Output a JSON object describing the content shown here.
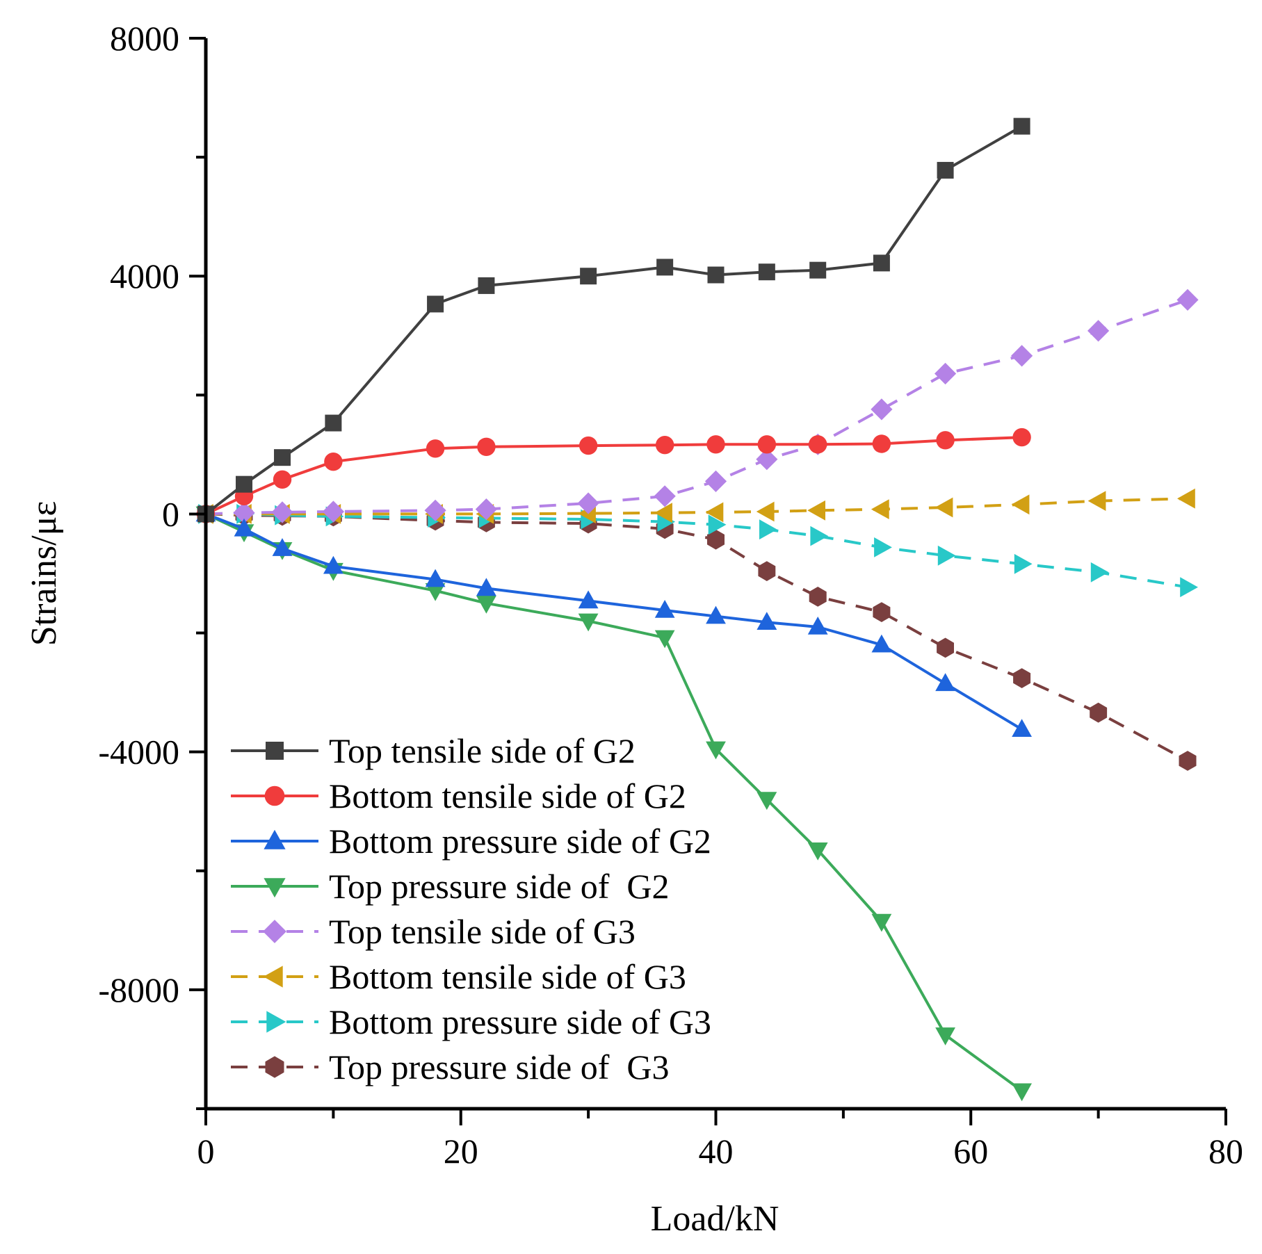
{
  "chart_data": {
    "type": "line",
    "title": "",
    "xlabel": "Load/kN",
    "ylabel": "Strains/με",
    "xlim": [
      0,
      80
    ],
    "ylim": [
      -10000,
      8000
    ],
    "xticks": [
      0,
      20,
      40,
      60,
      80
    ],
    "xtick_labels": [
      "0",
      "20",
      "40",
      "60",
      "80"
    ],
    "yticks": [
      8000,
      4000,
      0,
      -4000,
      -8000
    ],
    "ytick_labels": [
      "8000",
      "4000",
      "0",
      "-4000",
      "-8000"
    ],
    "grid": false,
    "legend_position": "bottom-left",
    "series": [
      {
        "name": "Top tensile side of G2",
        "color": "#404040",
        "marker": "square",
        "dashed": false,
        "x": [
          0,
          3,
          6,
          10,
          18,
          22,
          30,
          36,
          40,
          44,
          48,
          53,
          58,
          64
        ],
        "y": [
          0,
          500,
          950,
          1530,
          3530,
          3840,
          4000,
          4150,
          4020,
          4070,
          4100,
          4220,
          5780,
          6520
        ]
      },
      {
        "name": "Bottom tensile side of G2",
        "color": "#f03c3c",
        "marker": "circle",
        "dashed": false,
        "x": [
          0,
          3,
          6,
          10,
          18,
          22,
          30,
          36,
          40,
          44,
          48,
          53,
          58,
          64
        ],
        "y": [
          0,
          300,
          580,
          880,
          1100,
          1130,
          1150,
          1160,
          1170,
          1170,
          1170,
          1180,
          1240,
          1290
        ]
      },
      {
        "name": "Bottom pressure side of G2",
        "color": "#1e64dc",
        "marker": "triangle-up",
        "dashed": false,
        "x": [
          0,
          3,
          6,
          10,
          18,
          22,
          30,
          36,
          40,
          44,
          48,
          53,
          58,
          64
        ],
        "y": [
          0,
          -250,
          -580,
          -880,
          -1100,
          -1250,
          -1460,
          -1620,
          -1720,
          -1820,
          -1900,
          -2200,
          -2850,
          -3620
        ]
      },
      {
        "name": "Top pressure side of  G2",
        "color": "#3caa5a",
        "marker": "triangle-down",
        "dashed": false,
        "x": [
          0,
          3,
          6,
          10,
          18,
          22,
          30,
          36,
          40,
          44,
          48,
          53,
          58,
          64
        ],
        "y": [
          0,
          -300,
          -600,
          -950,
          -1290,
          -1500,
          -1800,
          -2080,
          -3950,
          -4800,
          -5650,
          -6850,
          -8760,
          -9700
        ]
      },
      {
        "name": "Top tensile side of G3",
        "color": "#b482e6",
        "marker": "diamond",
        "dashed": true,
        "x": [
          0,
          3,
          6,
          10,
          18,
          22,
          30,
          36,
          40,
          44,
          48,
          53,
          58,
          64,
          70,
          77
        ],
        "y": [
          0,
          20,
          30,
          40,
          60,
          80,
          180,
          300,
          550,
          920,
          1170,
          1760,
          2360,
          2660,
          3080,
          3600
        ]
      },
      {
        "name": "Bottom tensile side of G3",
        "color": "#d2a014",
        "marker": "triangle-left",
        "dashed": true,
        "x": [
          0,
          3,
          6,
          10,
          18,
          22,
          30,
          36,
          40,
          44,
          48,
          53,
          58,
          64,
          70,
          77
        ],
        "y": [
          0,
          0,
          0,
          0,
          0,
          0,
          10,
          20,
          30,
          40,
          60,
          80,
          110,
          160,
          220,
          260
        ]
      },
      {
        "name": "Bottom pressure side of G3",
        "color": "#28c8c8",
        "marker": "triangle-right",
        "dashed": true,
        "x": [
          0,
          3,
          6,
          10,
          18,
          22,
          30,
          36,
          40,
          44,
          48,
          53,
          58,
          64,
          70,
          77
        ],
        "y": [
          0,
          0,
          -20,
          -40,
          -60,
          -70,
          -90,
          -130,
          -180,
          -260,
          -370,
          -560,
          -700,
          -840,
          -980,
          -1230
        ]
      },
      {
        "name": "Top pressure side of  G3",
        "color": "#7a3f3f",
        "marker": "hexagon",
        "dashed": true,
        "x": [
          0,
          3,
          6,
          10,
          18,
          22,
          30,
          36,
          40,
          44,
          48,
          53,
          58,
          64,
          70,
          77
        ],
        "y": [
          0,
          -20,
          -30,
          -40,
          -110,
          -140,
          -160,
          -250,
          -430,
          -960,
          -1390,
          -1650,
          -2250,
          -2760,
          -3340,
          -4150
        ]
      }
    ]
  }
}
